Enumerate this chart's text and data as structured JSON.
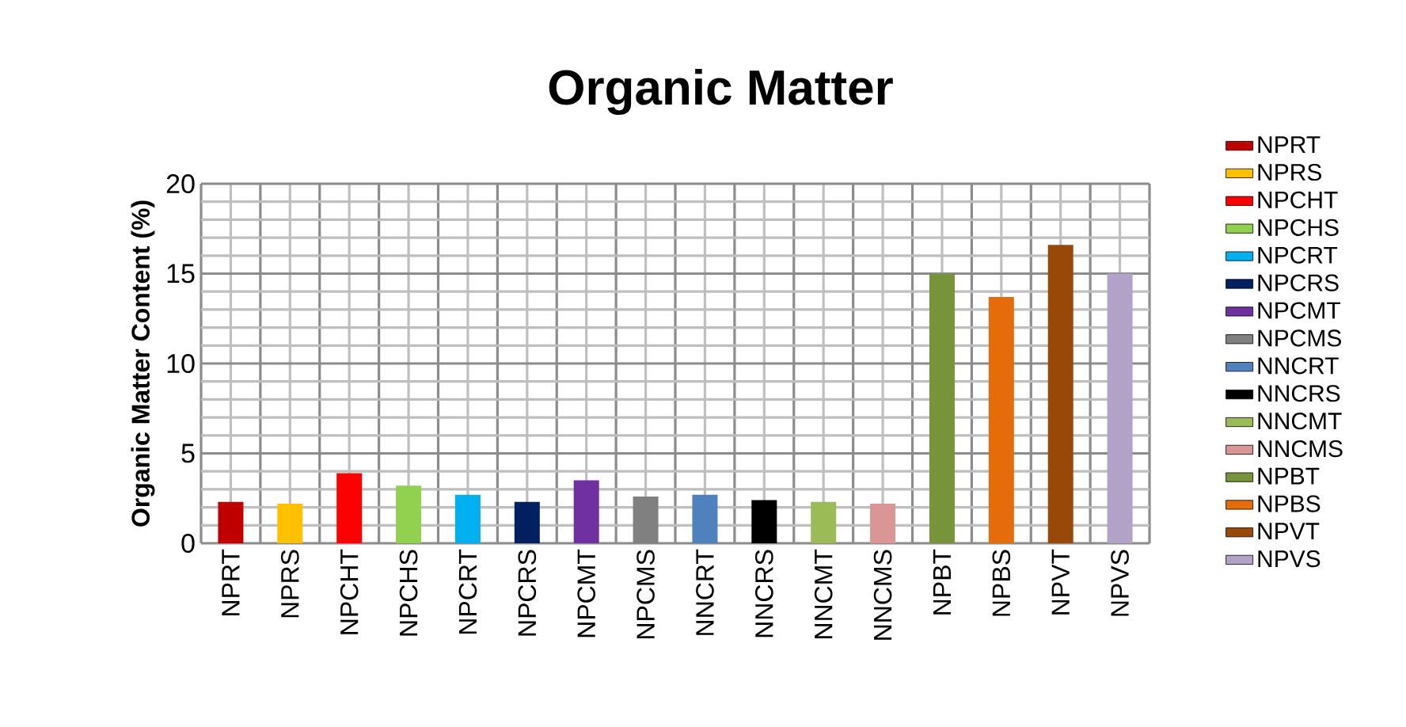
{
  "chart_data": {
    "type": "bar",
    "title": "Organic Matter",
    "ylabel": "Organic Matter Content (%)",
    "categories": [
      "NPRT",
      "NPRS",
      "NPCHT",
      "NPCHS",
      "NPCRT",
      "NPCRS",
      "NPCMT",
      "NPCMS",
      "NNCRT",
      "NNCRS",
      "NNCMT",
      "NNCMS",
      "NPBT",
      "NPBS",
      "NPVT",
      "NPVS"
    ],
    "series": [
      {
        "name": "NPRT",
        "color": "#c00000",
        "values": [
          2.3,
          null,
          null,
          null,
          null,
          null,
          null,
          null,
          null,
          null,
          null,
          null,
          null,
          null,
          null,
          null
        ]
      },
      {
        "name": "NPRS",
        "color": "#ffc000",
        "values": [
          null,
          2.2,
          null,
          null,
          null,
          null,
          null,
          null,
          null,
          null,
          null,
          null,
          null,
          null,
          null,
          null
        ]
      },
      {
        "name": "NPCHT",
        "color": "#ff0000",
        "values": [
          null,
          null,
          3.9,
          null,
          null,
          null,
          null,
          null,
          null,
          null,
          null,
          null,
          null,
          null,
          null,
          null
        ]
      },
      {
        "name": "NPCHS",
        "color": "#92d050",
        "values": [
          null,
          null,
          null,
          3.2,
          null,
          null,
          null,
          null,
          null,
          null,
          null,
          null,
          null,
          null,
          null,
          null
        ]
      },
      {
        "name": "NPCRT",
        "color": "#00b0f0",
        "values": [
          null,
          null,
          null,
          null,
          2.7,
          null,
          null,
          null,
          null,
          null,
          null,
          null,
          null,
          null,
          null,
          null
        ]
      },
      {
        "name": "NPCRS",
        "color": "#002060",
        "values": [
          null,
          null,
          null,
          null,
          null,
          2.3,
          null,
          null,
          null,
          null,
          null,
          null,
          null,
          null,
          null,
          null
        ]
      },
      {
        "name": "NPCMT",
        "color": "#7030a0",
        "values": [
          null,
          null,
          null,
          null,
          null,
          null,
          3.5,
          null,
          null,
          null,
          null,
          null,
          null,
          null,
          null,
          null
        ]
      },
      {
        "name": "NPCMS",
        "color": "#808080",
        "values": [
          null,
          null,
          null,
          null,
          null,
          null,
          null,
          2.6,
          null,
          null,
          null,
          null,
          null,
          null,
          null,
          null
        ]
      },
      {
        "name": "NNCRT",
        "color": "#4f81bd",
        "values": [
          null,
          null,
          null,
          null,
          null,
          null,
          null,
          null,
          2.7,
          null,
          null,
          null,
          null,
          null,
          null,
          null
        ]
      },
      {
        "name": "NNCRS",
        "color": "#000000",
        "values": [
          null,
          null,
          null,
          null,
          null,
          null,
          null,
          null,
          null,
          2.4,
          null,
          null,
          null,
          null,
          null,
          null
        ]
      },
      {
        "name": "NNCMT",
        "color": "#9bbb59",
        "values": [
          null,
          null,
          null,
          null,
          null,
          null,
          null,
          null,
          null,
          null,
          2.3,
          null,
          null,
          null,
          null,
          null
        ]
      },
      {
        "name": "NNCMS",
        "color": "#d99694",
        "values": [
          null,
          null,
          null,
          null,
          null,
          null,
          null,
          null,
          null,
          null,
          null,
          2.2,
          null,
          null,
          null,
          null
        ]
      },
      {
        "name": "NPBT",
        "color": "#77933c",
        "values": [
          null,
          null,
          null,
          null,
          null,
          null,
          null,
          null,
          null,
          null,
          null,
          null,
          15.0,
          null,
          null,
          null
        ]
      },
      {
        "name": "NPBS",
        "color": "#e46c0a",
        "values": [
          null,
          null,
          null,
          null,
          null,
          null,
          null,
          null,
          null,
          null,
          null,
          null,
          null,
          13.7,
          null,
          null
        ]
      },
      {
        "name": "NPVT",
        "color": "#984807",
        "values": [
          null,
          null,
          null,
          null,
          null,
          null,
          null,
          null,
          null,
          null,
          null,
          null,
          null,
          null,
          16.6,
          null
        ]
      },
      {
        "name": "NPVS",
        "color": "#b3a2c7",
        "values": [
          null,
          null,
          null,
          null,
          null,
          null,
          null,
          null,
          null,
          null,
          null,
          null,
          null,
          null,
          null,
          15.0
        ]
      }
    ],
    "ylim": [
      0,
      20
    ],
    "yticks": [
      0,
      5,
      10,
      15,
      20
    ],
    "grid": true,
    "legend": "right"
  }
}
